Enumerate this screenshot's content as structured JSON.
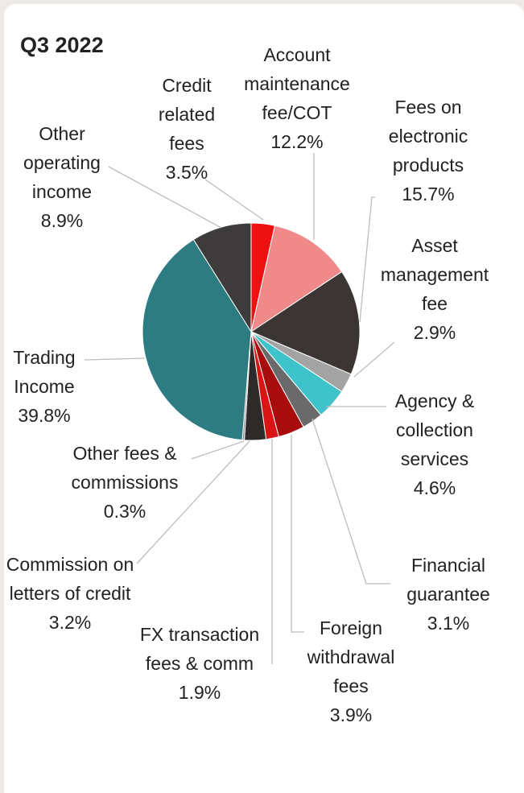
{
  "chart_data": {
    "type": "pie",
    "title": "Q3 2022",
    "categories": [
      "Credit related fees",
      "Account maintenance fee/COT",
      "Fees on electronic products",
      "Asset management fee",
      "Agency & collection services",
      "Financial guarantee",
      "Foreign withdrawal fees",
      "FX transaction fees & comm",
      "Commission on letters of credit",
      "Other fees & commissions",
      "Trading Income",
      "Other operating income"
    ],
    "values": [
      3.5,
      12.2,
      15.7,
      2.9,
      4.6,
      3.1,
      3.9,
      1.9,
      3.2,
      0.3,
      39.8,
      8.9
    ],
    "value_labels": [
      "3.5%",
      "12.2%",
      "15.7%",
      "2.9%",
      "4.6%",
      "3.1%",
      "3.9%",
      "1.9%",
      "3.2%",
      "0.3%",
      "39.8%",
      "8.9%"
    ],
    "colors": [
      "#ee1111",
      "#f08a8a",
      "#3b3533",
      "#a3a3a3",
      "#3ec3ca",
      "#6a6a6a",
      "#a80c0c",
      "#d81414",
      "#2e2a29",
      "#888888",
      "#2d7c82",
      "#3d3b3b"
    ]
  }
}
